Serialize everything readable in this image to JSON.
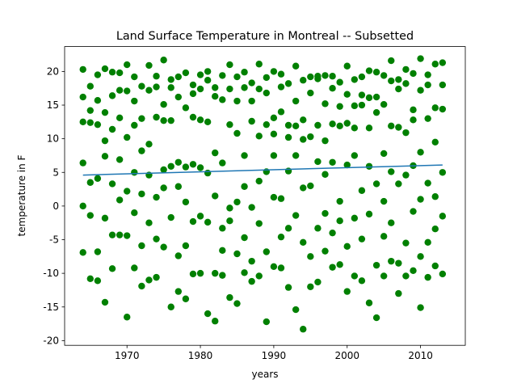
{
  "chart_data": {
    "type": "scatter",
    "title": "Land Surface Temperature in Montreal -- Subsetted",
    "xlabel": "years",
    "ylabel": "temperature in F",
    "xlim": [
      1961.5,
      2016.1
    ],
    "ylim": [
      -20.7,
      23.7
    ],
    "xticks": [
      1970,
      1980,
      1990,
      2000,
      2010
    ],
    "yticks": [
      -20,
      -15,
      -10,
      -5,
      0,
      5,
      10,
      15,
      20
    ],
    "series": [
      {
        "color": "#008000",
        "x": [
          1964,
          1964,
          1964,
          1964,
          1964,
          1964,
          1965,
          1965,
          1965,
          1965,
          1965,
          1965,
          1966,
          1966,
          1966,
          1966,
          1966,
          1966,
          1967,
          1967,
          1967,
          1967,
          1967,
          1967,
          1968,
          1968,
          1968,
          1968,
          1968,
          1968,
          1969,
          1969,
          1969,
          1969,
          1969,
          1969,
          1970,
          1970,
          1970,
          1970,
          1970,
          1970,
          1971,
          1971,
          1971,
          1971,
          1971,
          1971,
          1972,
          1972,
          1972,
          1972,
          1972,
          1972,
          1973,
          1973,
          1973,
          1973,
          1973,
          1973,
          1974,
          1974,
          1974,
          1974,
          1974,
          1974,
          1975,
          1975,
          1975,
          1975,
          1975,
          1975,
          1976,
          1976,
          1976,
          1976,
          1976,
          1976,
          1977,
          1977,
          1977,
          1977,
          1977,
          1977,
          1978,
          1978,
          1978,
          1978,
          1978,
          1978,
          1979,
          1979,
          1979,
          1979,
          1979,
          1979,
          1980,
          1980,
          1980,
          1980,
          1980,
          1980,
          1981,
          1981,
          1981,
          1981,
          1981,
          1981,
          1982,
          1982,
          1982,
          1982,
          1982,
          1982,
          1983,
          1983,
          1983,
          1983,
          1983,
          1983,
          1984,
          1984,
          1984,
          1984,
          1984,
          1984,
          1985,
          1985,
          1985,
          1985,
          1985,
          1985,
          1986,
          1986,
          1986,
          1986,
          1986,
          1986,
          1987,
          1987,
          1987,
          1987,
          1987,
          1987,
          1988,
          1988,
          1988,
          1988,
          1988,
          1988,
          1989,
          1989,
          1989,
          1989,
          1989,
          1989,
          1990,
          1990,
          1990,
          1990,
          1990,
          1990,
          1991,
          1991,
          1991,
          1991,
          1991,
          1991,
          1992,
          1992,
          1992,
          1992,
          1992,
          1992,
          1993,
          1993,
          1993,
          1993,
          1993,
          1993,
          1994,
          1994,
          1994,
          1994,
          1994,
          1994,
          1995,
          1995,
          1995,
          1995,
          1995,
          1995,
          1996,
          1996,
          1996,
          1996,
          1996,
          1996,
          1997,
          1997,
          1997,
          1997,
          1997,
          1997,
          1998,
          1998,
          1998,
          1998,
          1998,
          1998,
          1999,
          1999,
          1999,
          1999,
          1999,
          1999,
          2000,
          2000,
          2000,
          2000,
          2000,
          2000,
          2001,
          2001,
          2001,
          2001,
          2001,
          2001,
          2002,
          2002,
          2002,
          2002,
          2002,
          2002,
          2003,
          2003,
          2003,
          2003,
          2003,
          2003,
          2004,
          2004,
          2004,
          2004,
          2004,
          2004,
          2005,
          2005,
          2005,
          2005,
          2005,
          2005,
          2006,
          2006,
          2006,
          2006,
          2006,
          2006,
          2007,
          2007,
          2007,
          2007,
          2007,
          2007,
          2008,
          2008,
          2008,
          2008,
          2008,
          2008,
          2009,
          2009,
          2009,
          2009,
          2009,
          2009,
          2010,
          2010,
          2010,
          2010,
          2010,
          2010,
          2011,
          2011,
          2011,
          2011,
          2011,
          2011,
          2012,
          2012,
          2012,
          2012,
          2012,
          2012,
          2013,
          2013,
          2013,
          2013,
          2013,
          2013
        ],
        "values": [
          -6.9,
          0,
          6.4,
          12.5,
          20.3,
          16.2,
          -10.8,
          -1.4,
          3.5,
          14.2,
          17.8,
          12.4,
          -11.1,
          -6.8,
          4.1,
          15.7,
          19.5,
          12.1,
          -14.3,
          -1.8,
          7.4,
          13.9,
          20.4,
          9.7,
          -9.3,
          -4.3,
          3.3,
          16.4,
          19.9,
          11.4,
          -4.3,
          0.9,
          6.9,
          17.2,
          19.8,
          13.1,
          -16.5,
          -4.4,
          2.2,
          10.2,
          21.0,
          17.1,
          -9.2,
          -1.0,
          5.0,
          12.0,
          19.2,
          15.6,
          -11.9,
          -5.9,
          1.8,
          8.2,
          17.8,
          13.0,
          -11.0,
          -2.5,
          4.6,
          9.2,
          20.9,
          17.2,
          -10.6,
          -4.9,
          1.3,
          13.2,
          19.3,
          17.7,
          -6.1,
          2.7,
          5.4,
          15.1,
          21.7,
          12.7,
          -15.0,
          -1.7,
          5.9,
          12.7,
          18.8,
          17.6,
          -12.7,
          -7.4,
          2.9,
          6.5,
          19.2,
          16.2,
          -13.8,
          -5.9,
          0.6,
          5.8,
          19.8,
          14.6,
          -10.1,
          -2.3,
          6.2,
          13.2,
          18.0,
          16.7,
          -10.0,
          -1.5,
          5.7,
          12.8,
          19.5,
          17.4,
          -16.0,
          -2.4,
          4.9,
          12.5,
          20.0,
          18.7,
          -17.1,
          -10.0,
          1.5,
          7.9,
          17.6,
          16.3,
          -10.3,
          -6.6,
          -3.3,
          6.4,
          19.4,
          15.8,
          -13.6,
          -2.2,
          -0.3,
          12.1,
          21.0,
          17.4,
          -14.5,
          -7.1,
          0.6,
          10.8,
          19.2,
          15.6,
          -9.9,
          -4.7,
          2.9,
          7.5,
          19.9,
          17.6,
          -11.2,
          -8.2,
          -0.2,
          12.6,
          18.3,
          15.6,
          -10.4,
          -2.6,
          3.7,
          10.4,
          21.1,
          17.4,
          -17.2,
          -6.8,
          5.1,
          12.1,
          19.1,
          16.8,
          -9.0,
          1.3,
          7.5,
          10.7,
          20.0,
          13.1,
          -9.2,
          -4.6,
          1.1,
          14.0,
          17.7,
          19.6,
          -12.1,
          -3.3,
          5.2,
          10.2,
          18.2,
          12.0,
          -15.4,
          -1.4,
          7.5,
          11.9,
          20.8,
          15.6,
          -18.3,
          -5.4,
          2.7,
          9.9,
          18.7,
          12.8,
          -12.0,
          -7.5,
          3.0,
          10.3,
          19.2,
          16.8,
          -11.3,
          -3.3,
          6.6,
          12.0,
          18.9,
          19.3,
          -6.7,
          -1.1,
          4.7,
          9.7,
          19.4,
          15.2,
          -9.1,
          -4.0,
          6.5,
          12.2,
          19.3,
          17.5,
          -8.7,
          -2.2,
          0.7,
          11.9,
          18.4,
          14.8,
          -12.7,
          -6.0,
          6.1,
          12.3,
          20.8,
          16.6,
          -10.4,
          -1.8,
          7.5,
          11.6,
          18.8,
          14.9,
          -11.1,
          -4.9,
          2.3,
          15.0,
          19.2,
          16.5,
          -14.4,
          -1.2,
          5.9,
          11.6,
          20.1,
          16.1,
          -16.6,
          -8.8,
          3.3,
          13.9,
          19.9,
          16.2,
          -10.4,
          -4.5,
          0.7,
          7.8,
          19.4,
          15.1,
          -8.2,
          -2.5,
          5.1,
          11.9,
          21.6,
          18.6,
          -13.0,
          -8.5,
          3.3,
          11.7,
          18.8,
          17.4,
          -10.4,
          -5.5,
          4.6,
          10.9,
          18.2,
          20.3,
          -9.6,
          -0.8,
          6.0,
          12.8,
          19.7,
          14.3,
          -15.1,
          -7.5,
          1.0,
          8.0,
          21.9,
          17.2,
          -10.6,
          -5.4,
          3.4,
          13.0,
          19.5,
          18.0,
          -8.9,
          -3.4,
          1.4,
          9.5,
          21.1,
          14.6,
          -10.1,
          -1.5,
          5.0,
          14.4,
          21.3,
          18.0
        ]
      },
      {
        "type": "line",
        "color": "#1f77b4",
        "x": [
          1964,
          2013
        ],
        "values": [
          4.6,
          6.1
        ]
      }
    ]
  }
}
